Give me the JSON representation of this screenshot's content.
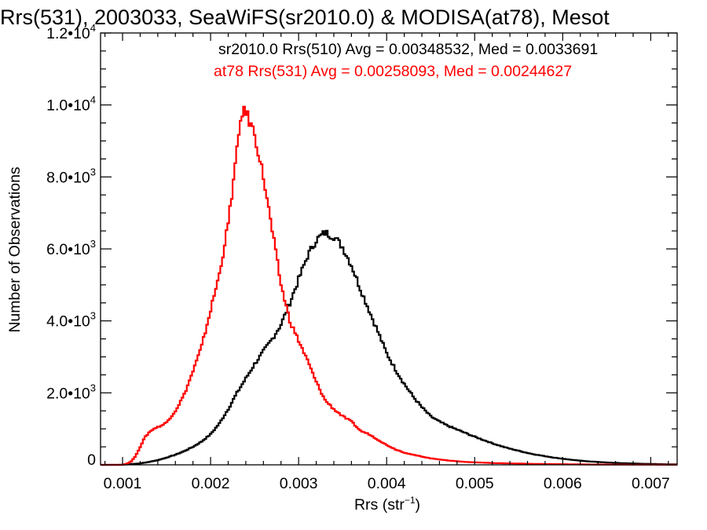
{
  "chart_data": {
    "type": "histogram-step",
    "title": "Rrs(531), 2003033, SeaWiFS(sr2010.0) & MODISA(at78), Mesot",
    "xlabel": "Rrs (str",
    "xlabel_sup": "−1",
    "xlabel_close": ")",
    "ylabel": "Number of Observations",
    "xlim": [
      0.00075,
      0.0073
    ],
    "ylim": [
      0,
      12000
    ],
    "grid": false,
    "legend_position": "top-right",
    "x_ticks": [
      {
        "value": 0.001,
        "label": "0.001"
      },
      {
        "value": 0.002,
        "label": "0.002"
      },
      {
        "value": 0.003,
        "label": "0.003"
      },
      {
        "value": 0.004,
        "label": "0.004"
      },
      {
        "value": 0.005,
        "label": "0.005"
      },
      {
        "value": 0.006,
        "label": "0.006"
      },
      {
        "value": 0.007,
        "label": "0.007"
      }
    ],
    "y_ticks": [
      {
        "value": 0,
        "mant": "0",
        "exp": ""
      },
      {
        "value": 2000,
        "mant": "2.0•10",
        "exp": "3"
      },
      {
        "value": 4000,
        "mant": "4.0•10",
        "exp": "3"
      },
      {
        "value": 6000,
        "mant": "6.0•10",
        "exp": "3"
      },
      {
        "value": 8000,
        "mant": "8.0•10",
        "exp": "3"
      },
      {
        "value": 10000,
        "mant": "1.0•10",
        "exp": "4"
      },
      {
        "value": 12000,
        "mant": "1.2•10",
        "exp": "4"
      }
    ],
    "series": [
      {
        "legend": "sr2010.0 Rrs(510) Avg = 0.00348532, Med = 0.0033691",
        "color": "#000000",
        "points": [
          [
            0.00095,
            0
          ],
          [
            0.001,
            5
          ],
          [
            0.0011,
            20
          ],
          [
            0.0012,
            40
          ],
          [
            0.0013,
            80
          ],
          [
            0.0014,
            130
          ],
          [
            0.0015,
            200
          ],
          [
            0.0016,
            280
          ],
          [
            0.0017,
            380
          ],
          [
            0.0018,
            500
          ],
          [
            0.0019,
            650
          ],
          [
            0.002,
            850
          ],
          [
            0.0021,
            1150
          ],
          [
            0.0022,
            1550
          ],
          [
            0.0023,
            2000
          ],
          [
            0.0024,
            2400
          ],
          [
            0.0025,
            2800
          ],
          [
            0.0026,
            3150
          ],
          [
            0.0027,
            3500
          ],
          [
            0.0028,
            3900
          ],
          [
            0.0029,
            4500
          ],
          [
            0.003,
            5150
          ],
          [
            0.0031,
            5800
          ],
          [
            0.0032,
            6250
          ],
          [
            0.0033,
            6450
          ],
          [
            0.0034,
            6350
          ],
          [
            0.0035,
            6050
          ],
          [
            0.0036,
            5550
          ],
          [
            0.0037,
            4900
          ],
          [
            0.0038,
            4300
          ],
          [
            0.0039,
            3700
          ],
          [
            0.004,
            3100
          ],
          [
            0.0041,
            2650
          ],
          [
            0.0042,
            2250
          ],
          [
            0.0043,
            1900
          ],
          [
            0.0044,
            1600
          ],
          [
            0.0045,
            1350
          ],
          [
            0.0046,
            1200
          ],
          [
            0.0047,
            1080
          ],
          [
            0.0048,
            980
          ],
          [
            0.0049,
            880
          ],
          [
            0.005,
            780
          ],
          [
            0.0051,
            690
          ],
          [
            0.0052,
            600
          ],
          [
            0.0053,
            520
          ],
          [
            0.0054,
            450
          ],
          [
            0.0055,
            390
          ],
          [
            0.0056,
            330
          ],
          [
            0.0057,
            280
          ],
          [
            0.0058,
            240
          ],
          [
            0.0059,
            200
          ],
          [
            0.006,
            170
          ],
          [
            0.0061,
            140
          ],
          [
            0.0062,
            115
          ],
          [
            0.0063,
            95
          ],
          [
            0.0064,
            80
          ],
          [
            0.0065,
            65
          ],
          [
            0.0066,
            55
          ],
          [
            0.0067,
            45
          ],
          [
            0.0068,
            38
          ],
          [
            0.0069,
            30
          ],
          [
            0.007,
            25
          ],
          [
            0.0071,
            20
          ],
          [
            0.0072,
            15
          ],
          [
            0.0073,
            12
          ]
        ]
      },
      {
        "legend": "at78 Rrs(531) Avg = 0.00258093, Med = 0.00244627",
        "color": "#ff0000",
        "points": [
          [
            0.00095,
            0
          ],
          [
            0.001,
            0
          ],
          [
            0.00105,
            30
          ],
          [
            0.0011,
            100
          ],
          [
            0.00115,
            250
          ],
          [
            0.0012,
            500
          ],
          [
            0.00125,
            750
          ],
          [
            0.0013,
            900
          ],
          [
            0.00135,
            1000
          ],
          [
            0.0014,
            1050
          ],
          [
            0.00145,
            1100
          ],
          [
            0.0015,
            1180
          ],
          [
            0.0016,
            1500
          ],
          [
            0.0017,
            1950
          ],
          [
            0.0018,
            2600
          ],
          [
            0.0019,
            3300
          ],
          [
            0.002,
            4300
          ],
          [
            0.0021,
            5300
          ],
          [
            0.0022,
            6700
          ],
          [
            0.0023,
            8700
          ],
          [
            0.00235,
            9800
          ],
          [
            0.0024,
            9800
          ],
          [
            0.0025,
            9200
          ],
          [
            0.0026,
            8000
          ],
          [
            0.0027,
            6500
          ],
          [
            0.0028,
            5000
          ],
          [
            0.0029,
            4000
          ],
          [
            0.003,
            3450
          ],
          [
            0.0031,
            2900
          ],
          [
            0.0032,
            2300
          ],
          [
            0.0033,
            1800
          ],
          [
            0.0034,
            1550
          ],
          [
            0.0035,
            1350
          ],
          [
            0.0036,
            1200
          ],
          [
            0.0037,
            950
          ],
          [
            0.0038,
            850
          ],
          [
            0.0039,
            700
          ],
          [
            0.004,
            550
          ],
          [
            0.0041,
            430
          ],
          [
            0.0042,
            340
          ],
          [
            0.0043,
            280
          ],
          [
            0.0044,
            230
          ],
          [
            0.0045,
            180
          ],
          [
            0.0046,
            150
          ],
          [
            0.0047,
            120
          ],
          [
            0.0048,
            100
          ],
          [
            0.0049,
            80
          ],
          [
            0.005,
            70
          ],
          [
            0.0051,
            60
          ],
          [
            0.0052,
            50
          ],
          [
            0.0053,
            45
          ],
          [
            0.0054,
            40
          ],
          [
            0.0055,
            35
          ],
          [
            0.0056,
            30
          ],
          [
            0.0057,
            25
          ],
          [
            0.0058,
            22
          ],
          [
            0.0059,
            20
          ],
          [
            0.006,
            18
          ],
          [
            0.0061,
            15
          ],
          [
            0.0062,
            12
          ],
          [
            0.0063,
            10
          ],
          [
            0.0064,
            9
          ],
          [
            0.0065,
            8
          ],
          [
            0.0066,
            7
          ],
          [
            0.0067,
            6
          ],
          [
            0.0068,
            5
          ],
          [
            0.0069,
            4
          ],
          [
            0.007,
            4
          ],
          [
            0.0071,
            3
          ],
          [
            0.0072,
            3
          ],
          [
            0.0073,
            2
          ]
        ]
      }
    ]
  }
}
